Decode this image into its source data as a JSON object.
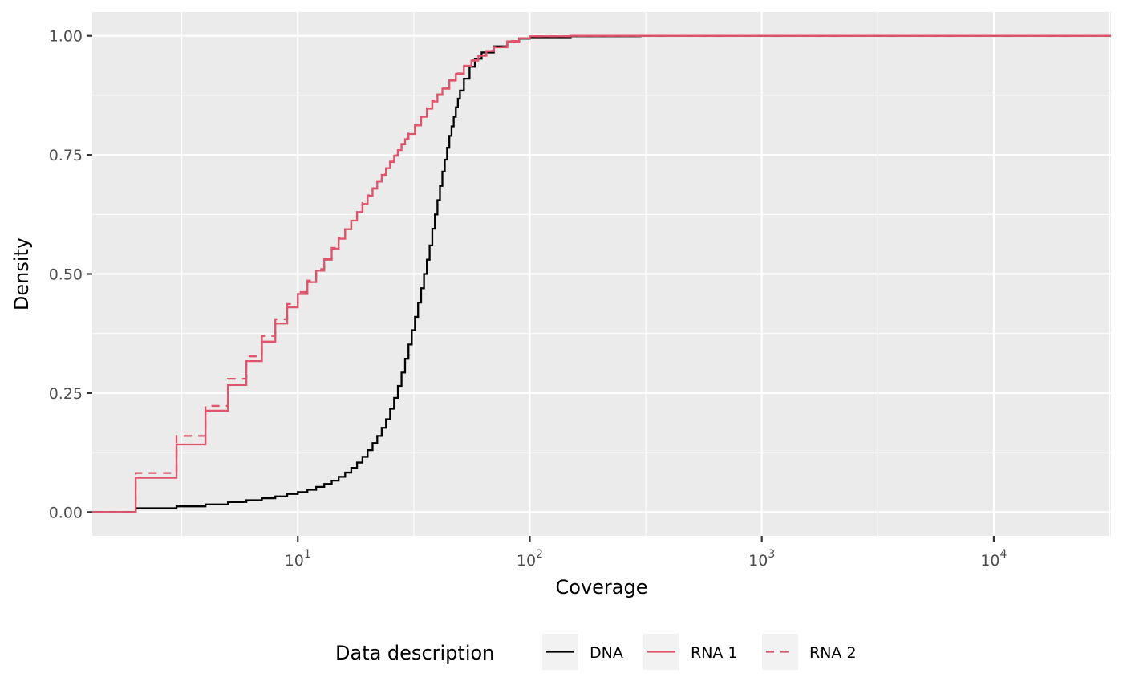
{
  "chart_data": {
    "type": "line",
    "step": true,
    "xscale": "log10",
    "xlabel": "Coverage",
    "ylabel": "Density",
    "xlim": [
      1.3,
      32000
    ],
    "ylim": [
      -0.05,
      1.05
    ],
    "x_tick_values": [
      10,
      100,
      1000,
      10000
    ],
    "x_tick_labels": [
      {
        "base": "10",
        "exp": "1"
      },
      {
        "base": "10",
        "exp": "2"
      },
      {
        "base": "10",
        "exp": "3"
      },
      {
        "base": "10",
        "exp": "4"
      }
    ],
    "y_ticks": [
      0,
      0.25,
      0.5,
      0.75,
      1.0
    ],
    "y_tick_labels": [
      "0.00",
      "0.25",
      "0.50",
      "0.75",
      "1.00"
    ],
    "grid": true,
    "background": "#ebebeb",
    "legend": {
      "title": "Data description",
      "position": "bottom",
      "entries": [
        {
          "label": "DNA",
          "color": "#000000",
          "dash": "solid"
        },
        {
          "label": "RNA 1",
          "color": "#df536b",
          "dash": "solid"
        },
        {
          "label": "RNA 2",
          "color": "#df536b",
          "dash": "dashed"
        }
      ]
    },
    "series": [
      {
        "name": "DNA",
        "color": "#000000",
        "dash": "solid",
        "points": [
          [
            1,
            0
          ],
          [
            2,
            0.008
          ],
          [
            3,
            0.012
          ],
          [
            4,
            0.016
          ],
          [
            5,
            0.021
          ],
          [
            6,
            0.025
          ],
          [
            7,
            0.029
          ],
          [
            8,
            0.033
          ],
          [
            9,
            0.038
          ],
          [
            10,
            0.042
          ],
          [
            11,
            0.047
          ],
          [
            12,
            0.053
          ],
          [
            13,
            0.059
          ],
          [
            14,
            0.066
          ],
          [
            15,
            0.074
          ],
          [
            16,
            0.083
          ],
          [
            17,
            0.093
          ],
          [
            18,
            0.104
          ],
          [
            19,
            0.116
          ],
          [
            20,
            0.13
          ],
          [
            21,
            0.145
          ],
          [
            22,
            0.16
          ],
          [
            23,
            0.177
          ],
          [
            24,
            0.195
          ],
          [
            25,
            0.217
          ],
          [
            26,
            0.24
          ],
          [
            27,
            0.265
          ],
          [
            28,
            0.293
          ],
          [
            29,
            0.322
          ],
          [
            30,
            0.352
          ],
          [
            31,
            0.382
          ],
          [
            32,
            0.41
          ],
          [
            33,
            0.44
          ],
          [
            34,
            0.47
          ],
          [
            35,
            0.5
          ],
          [
            36,
            0.53
          ],
          [
            37,
            0.56
          ],
          [
            38,
            0.595
          ],
          [
            39,
            0.625
          ],
          [
            40,
            0.655
          ],
          [
            41,
            0.685
          ],
          [
            42,
            0.715
          ],
          [
            43,
            0.74
          ],
          [
            44,
            0.765
          ],
          [
            45,
            0.79
          ],
          [
            46,
            0.81
          ],
          [
            47,
            0.83
          ],
          [
            48,
            0.85
          ],
          [
            49,
            0.868
          ],
          [
            50,
            0.885
          ],
          [
            52,
            0.91
          ],
          [
            55,
            0.935
          ],
          [
            58,
            0.952
          ],
          [
            62,
            0.965
          ],
          [
            70,
            0.978
          ],
          [
            80,
            0.988
          ],
          [
            90,
            0.994
          ],
          [
            100,
            0.997
          ],
          [
            150,
            0.999
          ],
          [
            300,
            1.0
          ],
          [
            32000,
            1.0
          ]
        ]
      },
      {
        "name": "RNA 1",
        "color": "#df536b",
        "dash": "solid",
        "points": [
          [
            1,
            0
          ],
          [
            2,
            0.072
          ],
          [
            3,
            0.142
          ],
          [
            4,
            0.213
          ],
          [
            5,
            0.267
          ],
          [
            6,
            0.317
          ],
          [
            7,
            0.358
          ],
          [
            8,
            0.396
          ],
          [
            9,
            0.43
          ],
          [
            10,
            0.458
          ],
          [
            11,
            0.483
          ],
          [
            12,
            0.507
          ],
          [
            13,
            0.53
          ],
          [
            14,
            0.553
          ],
          [
            15,
            0.574
          ],
          [
            16,
            0.594
          ],
          [
            17,
            0.612
          ],
          [
            18,
            0.63
          ],
          [
            19,
            0.647
          ],
          [
            20,
            0.664
          ],
          [
            21,
            0.679
          ],
          [
            22,
            0.694
          ],
          [
            23,
            0.708
          ],
          [
            24,
            0.722
          ],
          [
            25,
            0.735
          ],
          [
            26,
            0.748
          ],
          [
            27,
            0.76
          ],
          [
            28,
            0.772
          ],
          [
            29,
            0.783
          ],
          [
            30,
            0.794
          ],
          [
            32,
            0.812
          ],
          [
            34,
            0.83
          ],
          [
            36,
            0.847
          ],
          [
            38,
            0.862
          ],
          [
            40,
            0.876
          ],
          [
            42,
            0.889
          ],
          [
            45,
            0.906
          ],
          [
            48,
            0.92
          ],
          [
            52,
            0.936
          ],
          [
            56,
            0.948
          ],
          [
            60,
            0.958
          ],
          [
            65,
            0.968
          ],
          [
            70,
            0.976
          ],
          [
            80,
            0.988
          ],
          [
            90,
            0.995
          ],
          [
            100,
            0.999
          ],
          [
            150,
            1.0
          ],
          [
            32000,
            1.0
          ]
        ]
      },
      {
        "name": "RNA 2",
        "color": "#df536b",
        "dash": "dashed",
        "points": [
          [
            1,
            0
          ],
          [
            2,
            0.082
          ],
          [
            3,
            0.16
          ],
          [
            4,
            0.223
          ],
          [
            5,
            0.28
          ],
          [
            6,
            0.327
          ],
          [
            7,
            0.37
          ],
          [
            8,
            0.405
          ],
          [
            9,
            0.437
          ],
          [
            10,
            0.462
          ],
          [
            11,
            0.486
          ],
          [
            12,
            0.51
          ],
          [
            13,
            0.532
          ],
          [
            14,
            0.555
          ],
          [
            15,
            0.576
          ],
          [
            16,
            0.596
          ],
          [
            17,
            0.614
          ],
          [
            18,
            0.632
          ],
          [
            19,
            0.649
          ],
          [
            20,
            0.665
          ],
          [
            21,
            0.68
          ],
          [
            22,
            0.695
          ],
          [
            23,
            0.709
          ],
          [
            24,
            0.723
          ],
          [
            25,
            0.736
          ],
          [
            26,
            0.749
          ],
          [
            27,
            0.761
          ],
          [
            28,
            0.773
          ],
          [
            29,
            0.784
          ],
          [
            30,
            0.795
          ],
          [
            32,
            0.813
          ],
          [
            34,
            0.831
          ],
          [
            36,
            0.848
          ],
          [
            38,
            0.863
          ],
          [
            40,
            0.877
          ],
          [
            42,
            0.89
          ],
          [
            45,
            0.907
          ],
          [
            48,
            0.921
          ],
          [
            52,
            0.937
          ],
          [
            56,
            0.949
          ],
          [
            60,
            0.959
          ],
          [
            65,
            0.969
          ],
          [
            70,
            0.977
          ],
          [
            80,
            0.989
          ],
          [
            90,
            0.995
          ],
          [
            100,
            0.999
          ],
          [
            150,
            1.0
          ],
          [
            32000,
            1.0
          ]
        ]
      }
    ]
  }
}
